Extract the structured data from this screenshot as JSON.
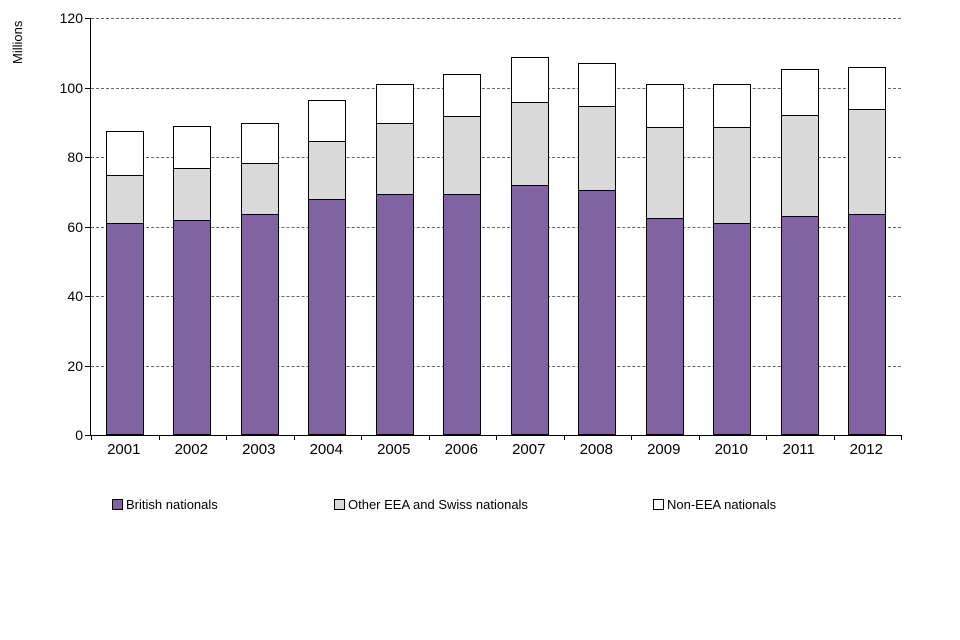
{
  "chart_data": {
    "type": "bar",
    "stacked": true,
    "title": "",
    "xlabel": "",
    "ylabel": "Millions",
    "ylim": [
      0,
      120
    ],
    "yticks": [
      0,
      20,
      40,
      60,
      80,
      100,
      120
    ],
    "grid": "horizontal-dashed",
    "legend_position": "bottom",
    "categories": [
      "2001",
      "2002",
      "2003",
      "2004",
      "2005",
      "2006",
      "2007",
      "2008",
      "2009",
      "2010",
      "2011",
      "2012"
    ],
    "series": [
      {
        "name": "British nationals",
        "color": "#8064A2",
        "values": [
          61,
          62,
          63.5,
          68,
          69.5,
          69.5,
          72,
          70.5,
          62.5,
          61,
          63,
          63.5
        ]
      },
      {
        "name": "Other EEA and Swiss nationals",
        "color": "#D9D9D9",
        "values": [
          14,
          15,
          15,
          17,
          20.5,
          22.5,
          24,
          24.5,
          26.5,
          28,
          29.5,
          30.5
        ]
      },
      {
        "name": "Non-EEA nationals",
        "color": "#FFFFFF",
        "values": [
          13,
          12.5,
          12,
          12,
          11.5,
          12.5,
          13.5,
          12.5,
          12.5,
          12.5,
          13.5,
          12.5
        ]
      }
    ]
  }
}
